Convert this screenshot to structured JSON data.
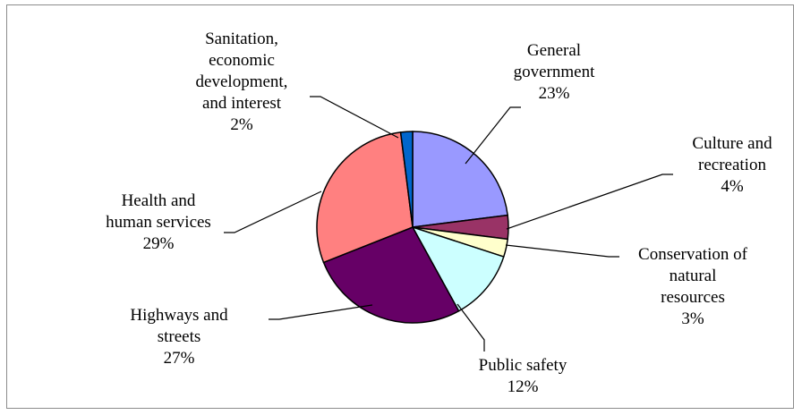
{
  "chart_data": {
    "type": "pie",
    "slices": [
      {
        "category": "General government",
        "value": 23,
        "label_lines": [
          "General",
          "government",
          "23%"
        ],
        "color": "#9999ff"
      },
      {
        "category": "Culture and recreation",
        "value": 4,
        "label_lines": [
          "Culture and",
          "recreation",
          "4%"
        ],
        "color": "#993366"
      },
      {
        "category": "Conservation of natural resources",
        "value": 3,
        "label_lines": [
          "Conservation of",
          "natural",
          "resources",
          "3%"
        ],
        "color": "#ffffcc"
      },
      {
        "category": "Public safety",
        "value": 12,
        "label_lines": [
          "Public safety",
          "12%"
        ],
        "color": "#ccffff"
      },
      {
        "category": "Highways and streets",
        "value": 27,
        "label_lines": [
          "Highways and",
          "streets",
          "27%"
        ],
        "color": "#660066"
      },
      {
        "category": "Health and human services",
        "value": 29,
        "label_lines": [
          "Health and",
          "human services",
          "29%"
        ],
        "color": "#ff8080"
      },
      {
        "category": "Sanitation, economic development, and interest",
        "value": 2,
        "label_lines": [
          "Sanitation,",
          "economic",
          "development,",
          "and interest",
          "2%"
        ],
        "color": "#0066cc"
      }
    ]
  }
}
